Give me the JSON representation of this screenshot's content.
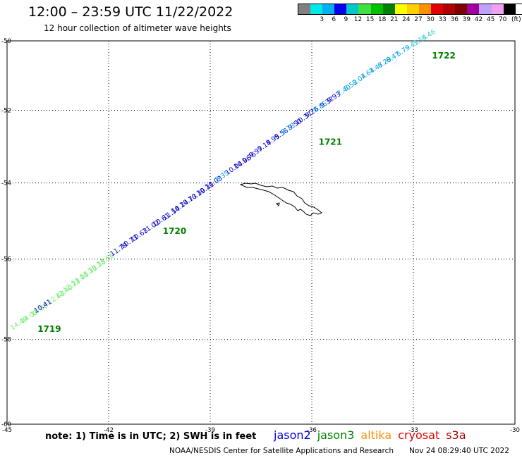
{
  "header": {
    "title": "12:00 – 23:59 UTC 11/22/2022",
    "subtitle": "12 hour collection of altimeter wave heights"
  },
  "legend": {
    "unit": "(ft)",
    "bins": [
      {
        "label": "",
        "color": "#808080"
      },
      {
        "label": "3",
        "color": "#00e8e8"
      },
      {
        "label": "6",
        "color": "#00b0f0"
      },
      {
        "label": "9",
        "color": "#0000f0"
      },
      {
        "label": "12",
        "color": "#00c8c8"
      },
      {
        "label": "15",
        "color": "#40e040"
      },
      {
        "label": "18",
        "color": "#00c000"
      },
      {
        "label": "21",
        "color": "#008000"
      },
      {
        "label": "24",
        "color": "#ffff00"
      },
      {
        "label": "27",
        "color": "#ffd000"
      },
      {
        "label": "30",
        "color": "#ff9000"
      },
      {
        "label": "33",
        "color": "#e00000"
      },
      {
        "label": "36",
        "color": "#b00000"
      },
      {
        "label": "39",
        "color": "#800000"
      },
      {
        "label": "42",
        "color": "#a000a0"
      },
      {
        "label": "45",
        "color": "#c0a0ff"
      },
      {
        "label": "70",
        "color": "#f0a0f0"
      },
      {
        "label": "",
        "color": "#000000"
      }
    ]
  },
  "axes": {
    "lon_ticks": [
      "-45",
      "-42",
      "-39",
      "-36",
      "-33",
      "-30"
    ],
    "lat_ticks": [
      "-50",
      "-52",
      "-54",
      "-56",
      "-58",
      "-60"
    ]
  },
  "track": {
    "segments": [
      {
        "color": "#70ec70",
        "points": [
          {
            "lon": -44.85,
            "lat": -57.78,
            "v": "14.40"
          },
          {
            "lon": -44.55,
            "lat": -57.62,
            "v": "14.00"
          },
          {
            "lon": -44.25,
            "lat": -57.45,
            "v": "14.98"
          },
          {
            "lon": -43.75,
            "lat": -57.15,
            "v": "12.63"
          },
          {
            "lon": -43.52,
            "lat": -57.0,
            "v": "12.40"
          },
          {
            "lon": -43.3,
            "lat": -56.85,
            "v": "12.23"
          },
          {
            "lon": -43.05,
            "lat": -56.68,
            "v": "13.06"
          },
          {
            "lon": -42.8,
            "lat": -56.52,
            "v": "13.30"
          },
          {
            "lon": -42.55,
            "lat": -56.36,
            "v": "13.38"
          },
          {
            "lon": -42.3,
            "lat": -56.2,
            "v": "13.56"
          }
        ]
      },
      {
        "color": "#0000c8",
        "points": [
          {
            "lon": -44.15,
            "lat": -57.36,
            "v": "10.41"
          },
          {
            "lon": -41.9,
            "lat": -55.93,
            "v": "11.79"
          },
          {
            "lon": -41.6,
            "lat": -55.74,
            "v": "10.73"
          },
          {
            "lon": -41.3,
            "lat": -55.56,
            "v": "10.63"
          },
          {
            "lon": -40.95,
            "lat": -55.35,
            "v": "11.02"
          },
          {
            "lon": -40.65,
            "lat": -55.17,
            "v": "10.61"
          },
          {
            "lon": -40.35,
            "lat": -54.99,
            "v": "11.54"
          },
          {
            "lon": -40.1,
            "lat": -54.82,
            "v": "10.24"
          },
          {
            "lon": -39.85,
            "lat": -54.66,
            "v": "10.73"
          },
          {
            "lon": -39.6,
            "lat": -54.51,
            "v": "10.39"
          },
          {
            "lon": -39.35,
            "lat": -54.35,
            "v": "10.31"
          },
          {
            "lon": -39.1,
            "lat": -54.18,
            "v": "10.03"
          },
          {
            "lon": -38.5,
            "lat": -53.79,
            "v": "10.04"
          },
          {
            "lon": -38.25,
            "lat": -53.63,
            "v": "10.06"
          },
          {
            "lon": -38.0,
            "lat": -53.47,
            "v": "9.76"
          },
          {
            "lon": -37.8,
            "lat": -53.32,
            "v": "9.97"
          },
          {
            "lon": -37.55,
            "lat": -53.15,
            "v": "9.14"
          },
          {
            "lon": -37.3,
            "lat": -52.98,
            "v": "9.95"
          },
          {
            "lon": -37.05,
            "lat": -52.82,
            "v": "9.56"
          },
          {
            "lon": -36.65,
            "lat": -52.56,
            "v": "9.50"
          },
          {
            "lon": -36.45,
            "lat": -52.42,
            "v": "10.37"
          },
          {
            "lon": -36.15,
            "lat": -52.22,
            "v": "9.26"
          },
          {
            "lon": -35.7,
            "lat": -51.94,
            "v": "9.37"
          },
          {
            "lon": -35.5,
            "lat": -51.8,
            "v": "9.93"
          }
        ]
      },
      {
        "color": "#00a0e0",
        "points": [
          {
            "lon": -38.8,
            "lat": -53.98,
            "v": "8.35"
          },
          {
            "lon": -36.85,
            "lat": -52.68,
            "v": "8.73"
          },
          {
            "lon": -35.9,
            "lat": -52.06,
            "v": "8.85"
          },
          {
            "lon": -35.2,
            "lat": -51.6,
            "v": "7.40"
          },
          {
            "lon": -35.0,
            "lat": -51.46,
            "v": "8.52"
          },
          {
            "lon": -34.75,
            "lat": -51.29,
            "v": "8.04"
          },
          {
            "lon": -34.5,
            "lat": -51.12,
            "v": "7.64"
          },
          {
            "lon": -34.25,
            "lat": -50.96,
            "v": "7.47"
          },
          {
            "lon": -34.0,
            "lat": -50.8,
            "v": "6.29"
          },
          {
            "lon": -33.75,
            "lat": -50.65,
            "v": "6.47"
          },
          {
            "lon": -33.45,
            "lat": -50.46,
            "v": "5.79"
          }
        ]
      },
      {
        "color": "#40d0e0",
        "points": [
          {
            "lon": -33.2,
            "lat": -50.3,
            "v": "5.41"
          },
          {
            "lon": -32.95,
            "lat": -50.15,
            "v": "5.54"
          },
          {
            "lon": -32.7,
            "lat": -50.0,
            "v": "5.46"
          }
        ]
      }
    ],
    "time_labels": [
      {
        "text": "1719",
        "lon": -44.1,
        "lat": -57.82
      },
      {
        "text": "1720",
        "lon": -40.4,
        "lat": -55.35
      },
      {
        "text": "1721",
        "lon": -35.8,
        "lat": -52.96
      },
      {
        "text": "1722",
        "lon": -32.45,
        "lat": -50.52
      }
    ]
  },
  "footer": {
    "note": "note: 1) Time is in UTC; 2) SWH is in feet",
    "missions": [
      {
        "name": "jason2",
        "color": "#0000e0"
      },
      {
        "name": "jason3",
        "color": "#008000"
      },
      {
        "name": "altika",
        "color": "#ff9000"
      },
      {
        "name": "cryosat",
        "color": "#e00000"
      },
      {
        "name": "s3a",
        "color": "#b00000"
      }
    ],
    "credit": "NOAA/NESDIS Center for Satellite Applications and Research",
    "timestamp": "Nov 24 08:29:40 UTC 2022"
  }
}
